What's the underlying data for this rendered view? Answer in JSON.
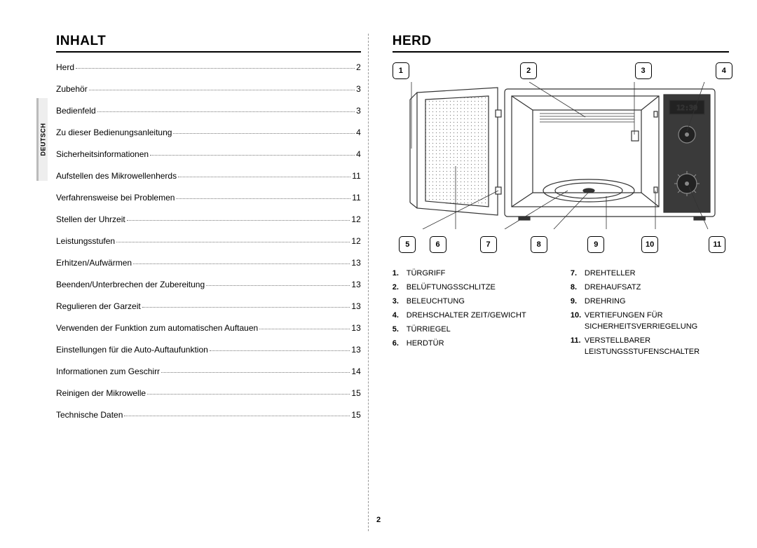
{
  "side_tab": {
    "label": "DEUTSCH"
  },
  "left": {
    "heading": "INHALT",
    "toc": [
      {
        "label": "Herd",
        "page": "2"
      },
      {
        "label": "Zubehör",
        "page": "3"
      },
      {
        "label": "Bedienfeld",
        "page": "3"
      },
      {
        "label": "Zu dieser Bedienungsanleitung",
        "page": "4"
      },
      {
        "label": "Sicherheitsinformationen",
        "page": "4"
      },
      {
        "label": "Aufstellen des Mikrowellenherds",
        "page": "11"
      },
      {
        "label": "Verfahrensweise bei Problemen",
        "page": "11"
      },
      {
        "label": "Stellen der Uhrzeit",
        "page": "12"
      },
      {
        "label": "Leistungsstufen",
        "page": "12"
      },
      {
        "label": "Erhitzen/Aufwärmen",
        "page": "13"
      },
      {
        "label": "Beenden/Unterbrechen der Zubereitung",
        "page": "13"
      },
      {
        "label": "Regulieren der Garzeit",
        "page": "13"
      },
      {
        "label": "Verwenden der Funktion zum automatischen Auftauen",
        "page": "13"
      },
      {
        "label": "Einstellungen für die Auto-Auftaufunktion",
        "page": "13"
      },
      {
        "label": "Informationen zum Geschirr",
        "page": "14"
      },
      {
        "label": "Reinigen der Mikrowelle",
        "page": "15"
      },
      {
        "label": "Technische Daten",
        "page": "15"
      }
    ]
  },
  "right": {
    "heading": "HERD",
    "callouts_top": [
      "1",
      "2",
      "3",
      "4"
    ],
    "callouts_bottom": [
      "5",
      "6",
      "7",
      "8",
      "9",
      "10",
      "11"
    ],
    "legend_left": [
      {
        "num": "1.",
        "text": "TÜRGRIFF"
      },
      {
        "num": "2.",
        "text": "BELÜFTUNGSSCHLITZE"
      },
      {
        "num": "3.",
        "text": "BELEUCHTUNG"
      },
      {
        "num": "4.",
        "text": "DREHSCHALTER ZEIT/GEWICHT"
      },
      {
        "num": "5.",
        "text": "TÜRRIEGEL"
      },
      {
        "num": "6.",
        "text": "HERDTÜR"
      }
    ],
    "legend_right": [
      {
        "num": "7.",
        "text": "DREHTELLER"
      },
      {
        "num": "8.",
        "text": "DREHAUFSATZ"
      },
      {
        "num": "9.",
        "text": "DREHRING"
      },
      {
        "num": "10.",
        "text": "VERTIEFUNGEN FÜR SICHERHEITSVERRIEGELUNG"
      },
      {
        "num": "11.",
        "text": "VERSTELLBARER LEISTUNGSSTUFENSCHALTER"
      }
    ],
    "diagram": {
      "display_text": "12:30",
      "colors": {
        "stroke": "#333333",
        "panel_fill": "#3a3a3a",
        "display_bg": "#222222",
        "display_fg": "#c0c0c0"
      }
    }
  },
  "page_number": "2"
}
